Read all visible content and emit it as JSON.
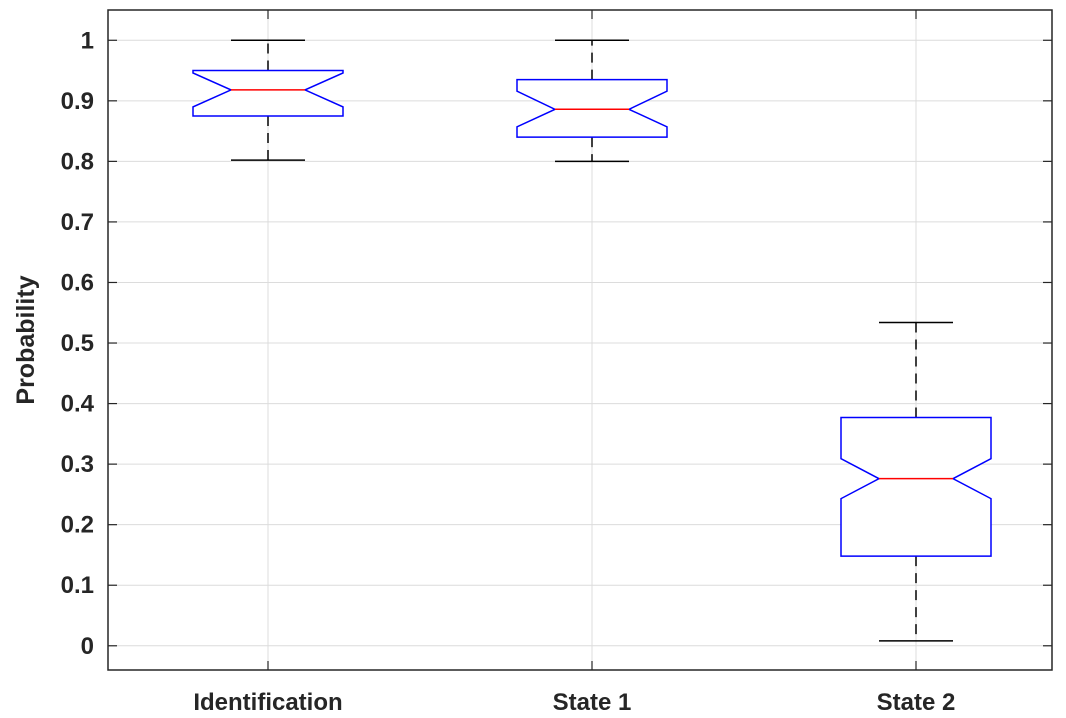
{
  "chart_data": {
    "type": "boxplot",
    "title": "",
    "xlabel": "",
    "ylabel": "Probability",
    "ylim": [
      -0.04,
      1.05
    ],
    "yticks": [
      0,
      0.1,
      0.2,
      0.3,
      0.4,
      0.5,
      0.6,
      0.7,
      0.8,
      0.9,
      1
    ],
    "ytick_labels": [
      "0",
      "0.1",
      "0.2",
      "0.3",
      "0.4",
      "0.5",
      "0.6",
      "0.7",
      "0.8",
      "0.9",
      "1"
    ],
    "categories": [
      "Identification",
      "State 1",
      "State 2"
    ],
    "boxes": [
      {
        "category": "Identification",
        "whisker_low": 0.802,
        "q1": 0.875,
        "median": 0.918,
        "q3": 0.95,
        "whisker_high": 1.0,
        "notch_low": 0.89,
        "notch_high": 0.946
      },
      {
        "category": "State 1",
        "whisker_low": 0.8,
        "q1": 0.84,
        "median": 0.886,
        "q3": 0.935,
        "whisker_high": 1.0,
        "notch_low": 0.857,
        "notch_high": 0.916
      },
      {
        "category": "State 2",
        "whisker_low": 0.008,
        "q1": 0.148,
        "median": 0.276,
        "q3": 0.377,
        "whisker_high": 0.534,
        "notch_low": 0.243,
        "notch_high": 0.309
      }
    ],
    "grid": true,
    "colors": {
      "box": "#0000ff",
      "median": "#ff0000",
      "whisker": "#000000",
      "grid": "#dcdcdc",
      "axis": "#262626"
    }
  }
}
